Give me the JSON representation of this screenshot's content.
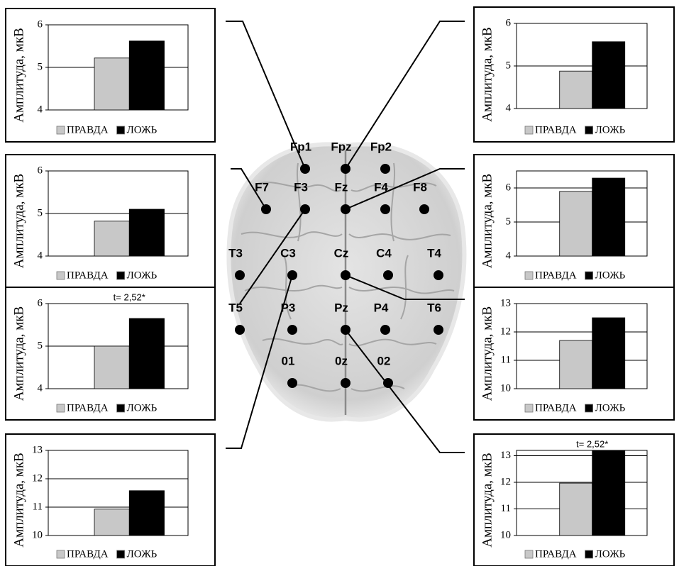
{
  "chart_data": [
    {
      "type": "bar",
      "ylabel": "Амплитуда, мкВ",
      "categories": [
        null
      ],
      "ylim": [
        4,
        6
      ],
      "yticks": [
        4,
        5,
        6
      ],
      "series": [
        {
          "name": "ПРАВДА",
          "color": "#c8c8c8",
          "values": [
            5.22
          ]
        },
        {
          "name": "ЛОЖЬ",
          "color": "#000000",
          "values": [
            5.62
          ]
        }
      ]
    },
    {
      "type": "bar",
      "ylabel": "Амплитуда, мкВ",
      "categories": [
        null
      ],
      "ylim": [
        4,
        6
      ],
      "yticks": [
        4,
        5,
        6
      ],
      "series": [
        {
          "name": "ПРАВДА",
          "color": "#c8c8c8",
          "values": [
            4.82
          ]
        },
        {
          "name": "ЛОЖЬ",
          "color": "#000000",
          "values": [
            5.1
          ]
        }
      ]
    },
    {
      "type": "bar",
      "ylabel": "Амплитуда, мкВ",
      "annotation": "t= 2,52*",
      "categories": [
        null
      ],
      "ylim": [
        4,
        6
      ],
      "yticks": [
        4,
        5,
        6
      ],
      "series": [
        {
          "name": "ПРАВДА",
          "color": "#c8c8c8",
          "values": [
            5.0
          ]
        },
        {
          "name": "ЛОЖЬ",
          "color": "#000000",
          "values": [
            5.65
          ]
        }
      ]
    },
    {
      "type": "bar",
      "ylabel": "Амплитуда, мкВ",
      "categories": [
        null
      ],
      "ylim": [
        10,
        13
      ],
      "yticks": [
        10,
        11,
        12,
        13
      ],
      "series": [
        {
          "name": "ПРАВДА",
          "color": "#c8c8c8",
          "values": [
            10.93
          ]
        },
        {
          "name": "ЛОЖЬ",
          "color": "#000000",
          "values": [
            11.58
          ]
        }
      ]
    },
    {
      "type": "bar",
      "ylabel": "Амплитуда, мкВ",
      "categories": [
        null
      ],
      "ylim": [
        4,
        6
      ],
      "yticks": [
        4,
        5,
        6
      ],
      "series": [
        {
          "name": "ПРАВДА",
          "color": "#c8c8c8",
          "values": [
            4.88
          ]
        },
        {
          "name": "ЛОЖЬ",
          "color": "#000000",
          "values": [
            5.57
          ]
        }
      ]
    },
    {
      "type": "bar",
      "ylabel": "Амплитуда, мкВ",
      "categories": [
        null
      ],
      "ylim": [
        4,
        6.5
      ],
      "yticks": [
        4,
        5,
        6
      ],
      "series": [
        {
          "name": "ПРАВДА",
          "color": "#c8c8c8",
          "values": [
            5.9
          ]
        },
        {
          "name": "ЛОЖЬ",
          "color": "#000000",
          "values": [
            6.29
          ]
        }
      ]
    },
    {
      "type": "bar",
      "ylabel": "Амплитуда, мкВ",
      "categories": [
        null
      ],
      "ylim": [
        10,
        13
      ],
      "yticks": [
        10,
        11,
        12,
        13
      ],
      "series": [
        {
          "name": "ПРАВДА",
          "color": "#c8c8c8",
          "values": [
            11.7
          ]
        },
        {
          "name": "ЛОЖЬ",
          "color": "#000000",
          "values": [
            12.5
          ]
        }
      ]
    },
    {
      "type": "bar",
      "ylabel": "Амплитуда, мкВ",
      "annotation": "t= 2,52*",
      "categories": [
        null
      ],
      "ylim": [
        10,
        13.2
      ],
      "yticks": [
        10,
        11,
        12,
        13
      ],
      "series": [
        {
          "name": "ПРАВДА",
          "color": "#c8c8c8",
          "values": [
            11.97
          ]
        },
        {
          "name": "ЛОЖЬ",
          "color": "#000000",
          "values": [
            13.2
          ]
        }
      ]
    }
  ],
  "diagram": {
    "electrodes": [
      "Fp1",
      "Fpz",
      "Fp2",
      "F7",
      "F3",
      "Fz",
      "F4",
      "F8",
      "T3",
      "C3",
      "Cz",
      "C4",
      "T4",
      "T5",
      "P3",
      "Pz",
      "P4",
      "T6",
      "01",
      "0z",
      "02"
    ]
  }
}
